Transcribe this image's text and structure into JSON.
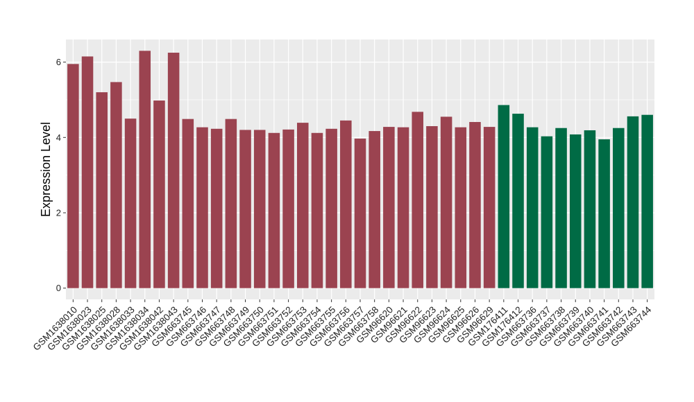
{
  "chart_data": {
    "type": "bar",
    "ylabel": "Expression Level",
    "xlabel": "",
    "ylim": [
      -0.3,
      6.6
    ],
    "yticks": [
      0,
      2,
      4,
      6
    ],
    "grid": true,
    "legend": "none",
    "colors": {
      "group1": "#9B4350",
      "group2": "#006B45",
      "panel": "#EBEBEB",
      "grid": "#FFFFFF"
    },
    "categories": [
      "GSM1638010",
      "GSM1638023",
      "GSM1638025",
      "GSM1638028",
      "GSM1638033",
      "GSM1638034",
      "GSM1638042",
      "GSM1638043",
      "GSM663745",
      "GSM663746",
      "GSM663747",
      "GSM663748",
      "GSM663749",
      "GSM663750",
      "GSM663751",
      "GSM663752",
      "GSM663753",
      "GSM663754",
      "GSM663755",
      "GSM663756",
      "GSM663757",
      "GSM663758",
      "GSM96620",
      "GSM96621",
      "GSM96622",
      "GSM96623",
      "GSM96624",
      "GSM96625",
      "GSM96626",
      "GSM96629",
      "GSM176411",
      "GSM176412",
      "GSM663736",
      "GSM663737",
      "GSM663738",
      "GSM663739",
      "GSM663740",
      "GSM663741",
      "GSM663742",
      "GSM663743",
      "GSM663744"
    ],
    "values": [
      5.95,
      6.15,
      5.2,
      5.47,
      4.5,
      6.3,
      4.98,
      6.25,
      4.49,
      4.27,
      4.23,
      4.49,
      4.2,
      4.2,
      4.12,
      4.21,
      4.39,
      4.12,
      4.23,
      4.45,
      3.97,
      4.17,
      4.28,
      4.27,
      4.68,
      4.3,
      4.55,
      4.27,
      4.41,
      4.28,
      4.86,
      4.63,
      4.27,
      4.03,
      4.25,
      4.08,
      4.19,
      3.95,
      4.25,
      4.56,
      4.6
    ],
    "groups": [
      1,
      1,
      1,
      1,
      1,
      1,
      1,
      1,
      1,
      1,
      1,
      1,
      1,
      1,
      1,
      1,
      1,
      1,
      1,
      1,
      1,
      1,
      1,
      1,
      1,
      1,
      1,
      1,
      1,
      1,
      2,
      2,
      2,
      2,
      2,
      2,
      2,
      2,
      2,
      2,
      2
    ]
  }
}
